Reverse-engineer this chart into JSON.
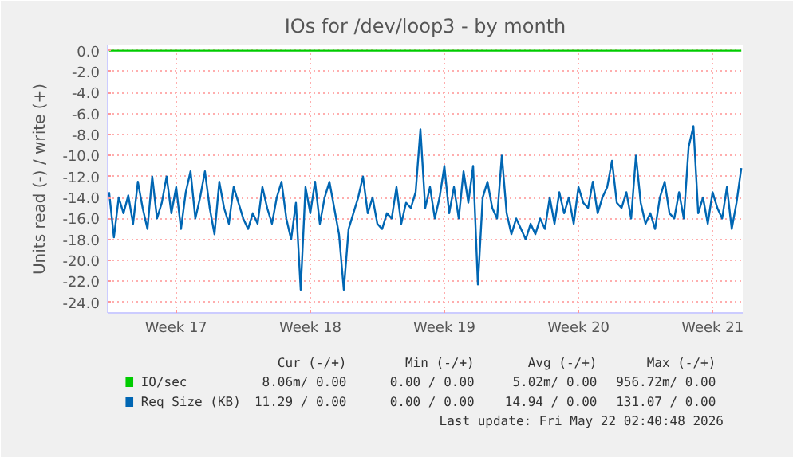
{
  "chart_data": {
    "type": "line",
    "title": "IOs for /dev/loop3 - by month",
    "ylabel": "Units read (-) / write (+)",
    "categories": [
      null,
      null,
      null,
      null,
      null,
      null,
      null,
      null,
      null,
      null,
      null,
      null,
      null,
      null,
      "Week 17",
      null,
      null,
      null,
      null,
      null,
      null,
      null,
      null,
      null,
      null,
      null,
      null,
      null,
      null,
      null,
      null,
      null,
      null,
      null,
      null,
      null,
      null,
      null,
      null,
      null,
      null,
      null,
      "Week 18",
      null,
      null,
      null,
      null,
      null,
      null,
      null,
      null,
      null,
      null,
      null,
      null,
      null,
      null,
      null,
      null,
      null,
      null,
      null,
      null,
      null,
      null,
      null,
      null,
      null,
      null,
      null,
      "Week 19",
      null,
      null,
      null,
      null,
      null,
      null,
      null,
      null,
      null,
      null,
      null,
      null,
      null,
      null,
      null,
      null,
      null,
      null,
      null,
      null,
      null,
      null,
      null,
      null,
      null,
      null,
      null,
      "Week 20",
      null,
      null,
      null,
      null,
      null,
      null,
      null,
      null,
      null,
      null,
      null,
      null,
      null,
      null,
      null,
      null,
      null,
      null,
      null,
      null,
      null,
      null,
      null,
      null,
      null,
      null,
      null,
      "Week 21",
      null,
      null,
      null,
      null,
      null,
      null
    ],
    "ylim": [
      -25,
      0.5
    ],
    "yticks": [
      {
        "value": 0,
        "label": "0.0"
      },
      {
        "value": -2,
        "label": "-2.0"
      },
      {
        "value": -4,
        "label": "-4.0"
      },
      {
        "value": -6,
        "label": "-6.0"
      },
      {
        "value": -8,
        "label": "-8.0"
      },
      {
        "value": -10,
        "label": "-10.0"
      },
      {
        "value": -12,
        "label": "-12.0"
      },
      {
        "value": -14,
        "label": "-14.0"
      },
      {
        "value": -16,
        "label": "-16.0"
      },
      {
        "value": -18,
        "label": "-18.0"
      },
      {
        "value": -20,
        "label": "-20.0"
      },
      {
        "value": -22,
        "label": "-22.0"
      },
      {
        "value": -24,
        "label": "-24.0"
      }
    ],
    "grid": true,
    "legend": "bottom",
    "marker": "none",
    "line_style": "solid",
    "series": [
      {
        "name": "IO/sec",
        "color": "#00cc00",
        "values": [
          0,
          0,
          0,
          0,
          0,
          0,
          0,
          0,
          0,
          0,
          0,
          0,
          0,
          0,
          0,
          0,
          0,
          0,
          0,
          0,
          0,
          0,
          0,
          0,
          0,
          0,
          0,
          0,
          0,
          0,
          0,
          0,
          0,
          0,
          0,
          0,
          0,
          0,
          0,
          0,
          0,
          0,
          0,
          0,
          0,
          0,
          0,
          0,
          0,
          0,
          0,
          0,
          0,
          0,
          0,
          0,
          0,
          0,
          0,
          0,
          0,
          0,
          0,
          0,
          0,
          0,
          0,
          0,
          0,
          0,
          0,
          0,
          0,
          0,
          0,
          0,
          0,
          0,
          0,
          0,
          0,
          0,
          0,
          0,
          0,
          0,
          0,
          0,
          0,
          0,
          0,
          0,
          0,
          0,
          0,
          0,
          0,
          0,
          0,
          0,
          0,
          0,
          0,
          0,
          0,
          0,
          0,
          0,
          0,
          0,
          0,
          0,
          0,
          0,
          0,
          0,
          0,
          0,
          0,
          0,
          0,
          0,
          0,
          0,
          0,
          0,
          0,
          0,
          0,
          0,
          0,
          0,
          0
        ]
      },
      {
        "name": "Req Size (KB)",
        "color": "#0066b3",
        "values": [
          -13.5,
          -17.8,
          -14,
          -15.5,
          -13.8,
          -16.5,
          -12.5,
          -15,
          -17,
          -12,
          -16,
          -14.5,
          -12,
          -15.5,
          -13,
          -17,
          -13.5,
          -11.5,
          -16,
          -14,
          -11.5,
          -15,
          -17.5,
          -12.5,
          -15,
          -16.5,
          -13,
          -14.5,
          -16,
          -17,
          -15.5,
          -16.5,
          -13,
          -15,
          -16.5,
          -14,
          -12.5,
          -16,
          -18,
          -14.5,
          -22.8,
          -13,
          -15.5,
          -12.5,
          -16.5,
          -14,
          -12.5,
          -15,
          -17.5,
          -22.8,
          -17,
          -15.5,
          -14,
          -12,
          -15.5,
          -14,
          -16.5,
          -17,
          -15.5,
          -16,
          -13,
          -16.5,
          -14.5,
          -15,
          -13.5,
          -7.5,
          -15,
          -13,
          -16,
          -14,
          -11,
          -15.5,
          -13,
          -16,
          -11.5,
          -14.5,
          -11,
          -22.3,
          -14,
          -12.5,
          -15,
          -16,
          -10,
          -15.5,
          -17.5,
          -16,
          -17,
          -18,
          -16.5,
          -17.5,
          -16,
          -17,
          -14,
          -16.5,
          -13.5,
          -15.5,
          -14,
          -16.5,
          -13,
          -14.5,
          -15,
          -12.5,
          -15.5,
          -14,
          -13,
          -10.5,
          -14.5,
          -15,
          -13.5,
          -16,
          -10,
          -14.5,
          -16.5,
          -15.5,
          -17,
          -14,
          -12.5,
          -15.5,
          -16,
          -13.5,
          -16,
          -9.2,
          -7.2,
          -15.5,
          -14,
          -16.5,
          -13.5,
          -15,
          -16,
          -13,
          -17,
          -14.5,
          -11.2
        ]
      }
    ],
    "annotations": [
      "Cur (-/+)",
      "Min (-/+)",
      "Avg (-/+)",
      "Max (-/+)",
      "8.06m/ 0.00",
      "0.00 / 0.00",
      "5.02m/ 0.00",
      "956.72m/ 0.00",
      "11.29 / 0.00",
      "0.00 / 0.00",
      "14.94 / 0.00",
      "131.07 / 0.00",
      "Last update: Fri May 22 02:40:48 2026"
    ]
  }
}
